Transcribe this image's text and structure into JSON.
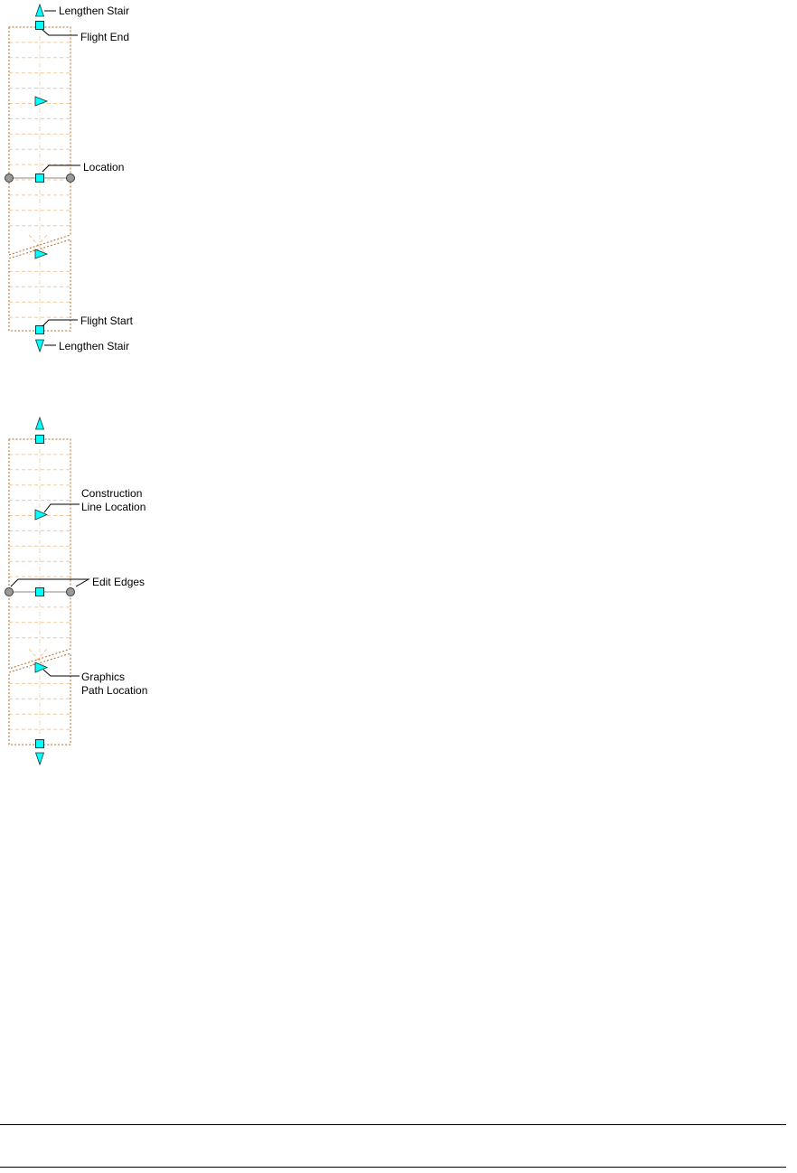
{
  "colors": {
    "grip_fill": "#00ffff",
    "edge_grip_fill": "#9a9a9a",
    "outline": "#b06a28",
    "treads": "#f1c89a"
  },
  "icons": {
    "location_grip": "square-grip-icon",
    "lengthen_grip": "triangle-grip-icon",
    "edge_grip": "circle-grip-icon"
  },
  "diagram1": {
    "labels": {
      "lengthen_top": "Lengthen Stair",
      "flight_end": "Flight End",
      "location": "Location",
      "flight_start": "Flight Start",
      "lengthen_bottom": "Lengthen Stair"
    }
  },
  "diagram2": {
    "labels": {
      "construction_line_1": "Construction",
      "construction_line_2": "Line Location",
      "edit_edges": "Edit Edges",
      "graphics_path_1": "Graphics",
      "graphics_path_2": "Path Location"
    }
  }
}
